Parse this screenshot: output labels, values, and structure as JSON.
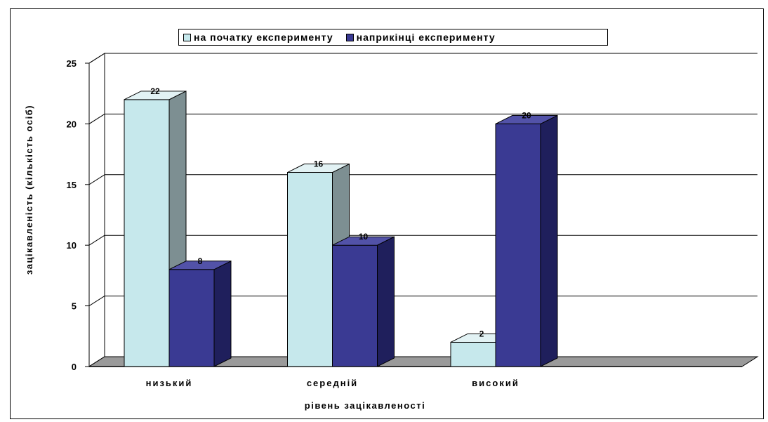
{
  "chart_data": {
    "type": "bar",
    "title": "",
    "xlabel": "рівень зацікавленості",
    "ylabel": "зацікавленість (кількість осіб)",
    "categories": [
      "низький",
      "середній",
      "високий"
    ],
    "series": [
      {
        "name": "на початку експерименту",
        "values": [
          22,
          16,
          2
        ],
        "color": "#c6e8ec"
      },
      {
        "name": "наприкінці експерименту",
        "values": [
          8,
          10,
          20
        ],
        "color": "#3a3a93"
      }
    ],
    "ylim": [
      0,
      25
    ],
    "yticks": [
      0,
      5,
      10,
      15,
      20,
      25
    ],
    "grid": true,
    "legend_position": "top",
    "style": "3d-column"
  }
}
